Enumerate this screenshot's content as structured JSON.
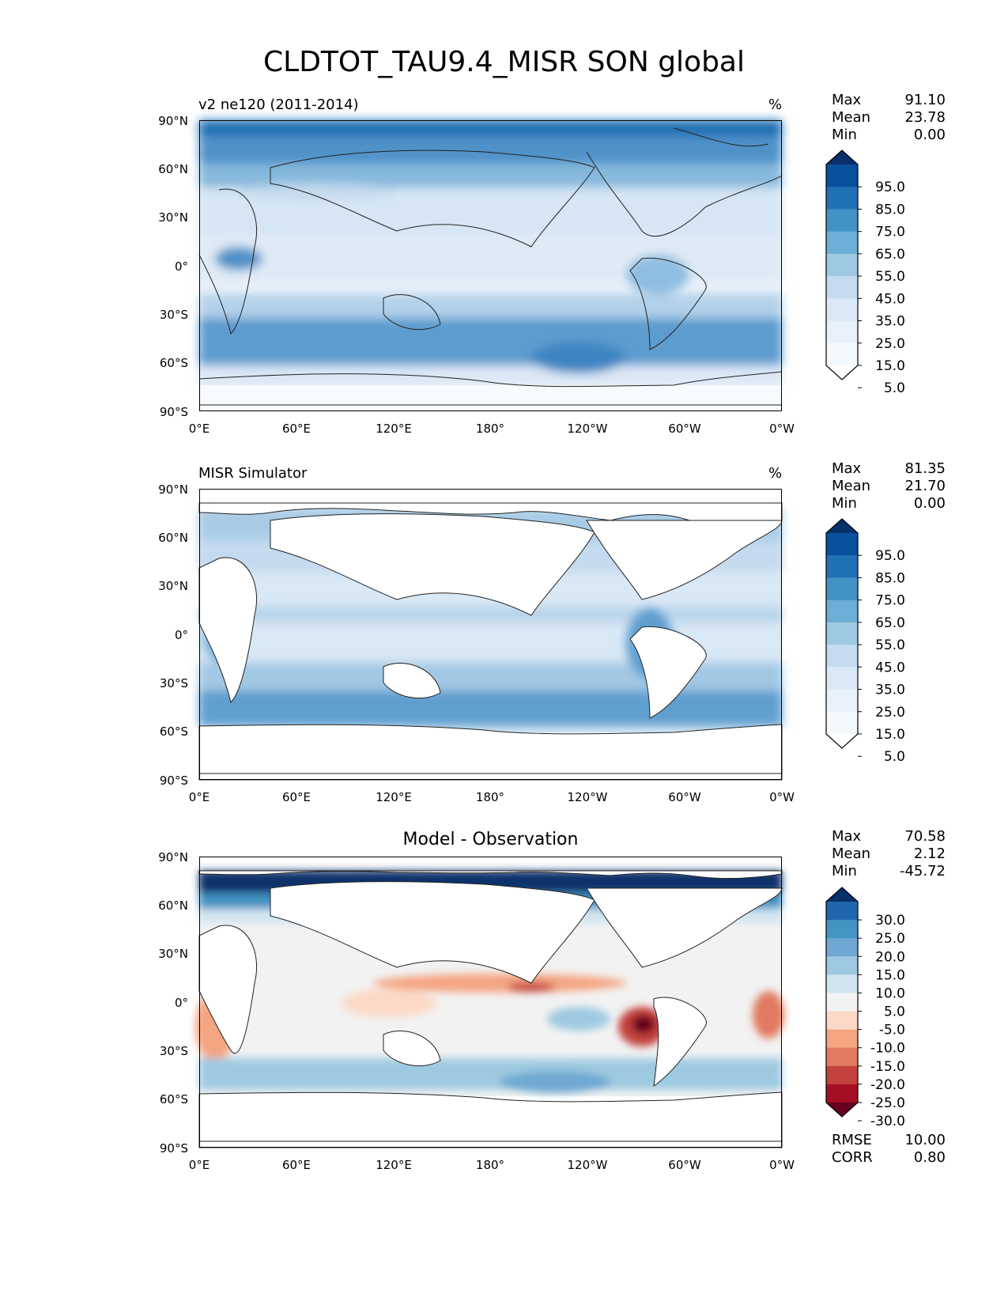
{
  "figure": {
    "title": "CLDTOT_TAU9.4_MISR SON global"
  },
  "axes": {
    "lat_ticks": [
      "90°N",
      "60°N",
      "30°N",
      "0°",
      "30°S",
      "60°S",
      "90°S"
    ],
    "lon_ticks": [
      "0°E",
      "60°E",
      "120°E",
      "180°",
      "120°W",
      "60°W",
      "0°W"
    ]
  },
  "panels": [
    {
      "id": "model",
      "title_left": "v2 ne120 (2011-2014)",
      "title_center": "",
      "units": "%",
      "stats": [
        {
          "label": "Max",
          "value": "91.10"
        },
        {
          "label": "Mean",
          "value": "23.78"
        },
        {
          "label": "Min",
          "value": "0.00"
        }
      ],
      "colorbar": {
        "colormap": "Blues",
        "labels": [
          "95.0",
          "85.0",
          "75.0",
          "65.0",
          "55.0",
          "45.0",
          "35.0",
          "25.0",
          "15.0",
          "5.0"
        ],
        "colors": [
          "#08306b",
          "#08519c",
          "#2171b5",
          "#4292c6",
          "#6baed6",
          "#9ecae1",
          "#c6dbef",
          "#dbe9f6",
          "#e8f1fb",
          "#f4f9fe",
          "#ffffff"
        ]
      }
    },
    {
      "id": "obs",
      "title_left": "MISR Simulator",
      "title_center": "",
      "units": "%",
      "stats": [
        {
          "label": "Max",
          "value": "81.35"
        },
        {
          "label": "Mean",
          "value": "21.70"
        },
        {
          "label": "Min",
          "value": "0.00"
        }
      ],
      "colorbar": {
        "colormap": "Blues",
        "labels": [
          "95.0",
          "85.0",
          "75.0",
          "65.0",
          "55.0",
          "45.0",
          "35.0",
          "25.0",
          "15.0",
          "5.0"
        ],
        "colors": [
          "#08306b",
          "#08519c",
          "#2171b5",
          "#4292c6",
          "#6baed6",
          "#9ecae1",
          "#c6dbef",
          "#dbe9f6",
          "#e8f1fb",
          "#f4f9fe",
          "#ffffff"
        ]
      }
    },
    {
      "id": "diff",
      "title_left": "",
      "title_center": "Model - Observation",
      "units": "",
      "stats": [
        {
          "label": "Max",
          "value": "70.58"
        },
        {
          "label": "Mean",
          "value": "2.12"
        },
        {
          "label": "Min",
          "value": "-45.72"
        }
      ],
      "metrics": [
        {
          "label": "RMSE",
          "value": "10.00"
        },
        {
          "label": "CORR",
          "value": "0.80"
        }
      ],
      "colorbar": {
        "colormap": "RdBu",
        "labels": [
          "30.0",
          "25.0",
          "20.0",
          "15.0",
          "10.0",
          "5.0",
          "-5.0",
          "-10.0",
          "-15.0",
          "-20.0",
          "-25.0",
          "-30.0"
        ],
        "colors": [
          "#08306b",
          "#2166ac",
          "#4393c3",
          "#6fa8d2",
          "#9ecae1",
          "#d1e5f0",
          "#f2f2f2",
          "#fbd9c6",
          "#f4a582",
          "#e17a61",
          "#c4423d",
          "#a50f26",
          "#67001f"
        ]
      }
    }
  ]
}
